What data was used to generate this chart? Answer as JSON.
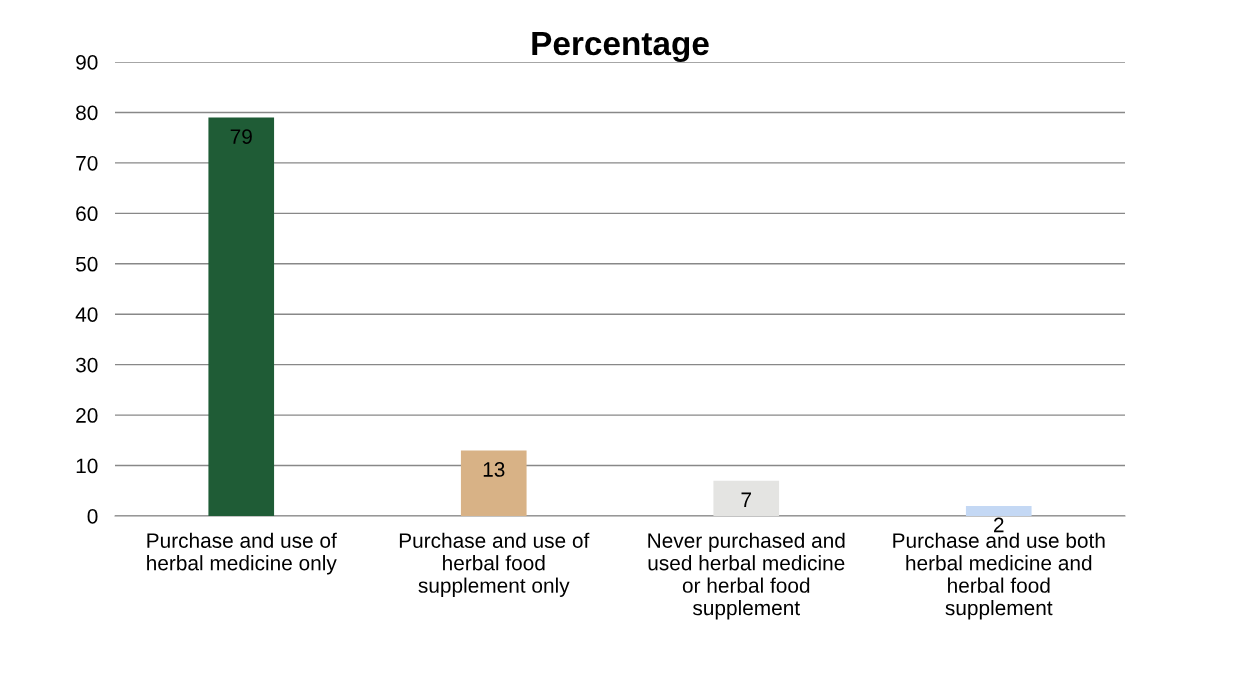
{
  "chart_data": {
    "type": "bar",
    "title": "Percentage",
    "categories": [
      "Purchase and use of\nherbal medicine only",
      "Purchase and use of\nherbal food\nsupplement only",
      "Never purchased and\nused herbal medicine\nor herbal food\nsupplement",
      "Purchase and use both\nherbal medicine and\nherbal food\nsupplement"
    ],
    "values": [
      79,
      13,
      7,
      2
    ],
    "colors": [
      "#1f5c36",
      "#d8b286",
      "#e4e4e2",
      "#c4d8f4"
    ],
    "ylim": [
      0,
      90
    ],
    "yticks": [
      0,
      10,
      20,
      30,
      40,
      50,
      60,
      70,
      80,
      90
    ],
    "grid": "y",
    "data_labels": true,
    "legend": false
  }
}
